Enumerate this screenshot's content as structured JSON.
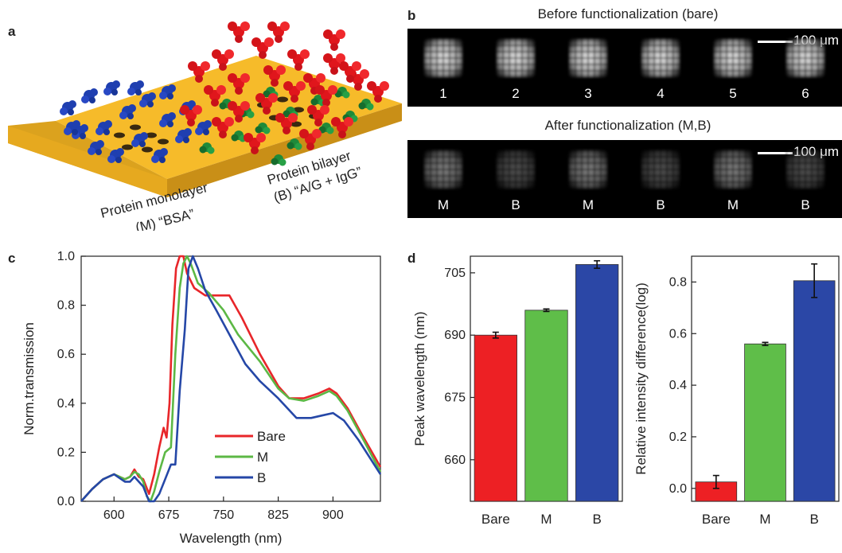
{
  "panel_labels": {
    "a": "a",
    "b": "b",
    "c": "c",
    "d": "d"
  },
  "panel_a": {
    "monolayer_line1": "Protein monolayer",
    "monolayer_line2": "(M) “BSA”",
    "bilayer_line1": "Protein bilayer",
    "bilayer_line2": "(B) “A/G + IgG”",
    "colors": {
      "substrate": "#f4b521",
      "bsa": "#1f3fb0",
      "ag": "#1f8a3a",
      "igg": "#e0161c"
    }
  },
  "panel_b": {
    "top_title": "Before functionalization (bare)",
    "bottom_title": "After functionalization (M,B)",
    "scale_label": "100 μm",
    "top_labels": [
      "1",
      "2",
      "3",
      "4",
      "5",
      "6"
    ],
    "bottom_labels": [
      "M",
      "B",
      "M",
      "B",
      "M",
      "B"
    ],
    "bottom_brightness": [
      0.55,
      0.35,
      0.55,
      0.35,
      0.55,
      0.35
    ]
  },
  "chart_data": [
    {
      "type": "line",
      "xlabel": "Wavelength (nm)",
      "ylabel": "Norm.transmission",
      "xlim": [
        555,
        965
      ],
      "ylim": [
        0,
        1.0
      ],
      "xticks": [
        600,
        675,
        750,
        825,
        900
      ],
      "yticks": [
        0.0,
        0.2,
        0.4,
        0.6,
        0.8,
        1.0
      ],
      "legend": "center-right",
      "series": [
        {
          "name": "Bare",
          "color": "#e8262a",
          "x": [
            555,
            570,
            585,
            600,
            615,
            622,
            628,
            634,
            640,
            648,
            655,
            662,
            668,
            672,
            676,
            680,
            685,
            690,
            695,
            700,
            710,
            725,
            740,
            758,
            775,
            800,
            825,
            840,
            860,
            880,
            895,
            905,
            920,
            940,
            965
          ],
          "y": [
            0.0,
            0.05,
            0.09,
            0.11,
            0.09,
            0.1,
            0.13,
            0.1,
            0.09,
            0.03,
            0.11,
            0.22,
            0.3,
            0.26,
            0.4,
            0.72,
            0.95,
            1.0,
            1.0,
            0.93,
            0.87,
            0.84,
            0.84,
            0.84,
            0.75,
            0.6,
            0.47,
            0.42,
            0.42,
            0.44,
            0.46,
            0.44,
            0.38,
            0.27,
            0.14
          ]
        },
        {
          "name": "M",
          "color": "#5cb845",
          "x": [
            555,
            570,
            585,
            600,
            615,
            622,
            628,
            634,
            640,
            645,
            650,
            655,
            662,
            670,
            678,
            684,
            690,
            695,
            700,
            705,
            715,
            730,
            750,
            770,
            800,
            825,
            840,
            860,
            880,
            895,
            905,
            920,
            940,
            965
          ],
          "y": [
            0.0,
            0.05,
            0.09,
            0.11,
            0.09,
            0.1,
            0.12,
            0.11,
            0.08,
            0.02,
            0.0,
            0.04,
            0.12,
            0.2,
            0.22,
            0.6,
            0.87,
            0.97,
            1.0,
            0.97,
            0.89,
            0.85,
            0.78,
            0.68,
            0.57,
            0.46,
            0.42,
            0.41,
            0.43,
            0.45,
            0.43,
            0.37,
            0.26,
            0.12
          ]
        },
        {
          "name": "B",
          "color": "#2547a7",
          "x": [
            555,
            570,
            585,
            600,
            615,
            622,
            628,
            634,
            640,
            648,
            655,
            662,
            670,
            678,
            684,
            690,
            697,
            702,
            708,
            715,
            725,
            740,
            760,
            780,
            800,
            825,
            850,
            870,
            885,
            900,
            915,
            935,
            965
          ],
          "y": [
            0.0,
            0.05,
            0.09,
            0.11,
            0.08,
            0.08,
            0.1,
            0.08,
            0.06,
            0.0,
            0.0,
            0.03,
            0.09,
            0.15,
            0.15,
            0.45,
            0.7,
            0.95,
            1.0,
            0.95,
            0.86,
            0.78,
            0.67,
            0.56,
            0.49,
            0.42,
            0.34,
            0.34,
            0.35,
            0.36,
            0.33,
            0.25,
            0.11
          ]
        }
      ]
    },
    {
      "type": "bar",
      "categories": [
        "Bare",
        "M",
        "B"
      ],
      "values": [
        690.0,
        696.0,
        707.0
      ],
      "errors": [
        0.7,
        0.3,
        0.9
      ],
      "colors": [
        "#ed2024",
        "#5fbe49",
        "#2b47a6"
      ],
      "ylabel": "Peak wavelength (nm)",
      "ylim": [
        650,
        709
      ],
      "yticks": [
        660,
        675,
        690,
        705
      ]
    },
    {
      "type": "bar",
      "categories": [
        "Bare",
        "M",
        "B"
      ],
      "values": [
        0.025,
        0.56,
        0.805
      ],
      "errors": [
        0.025,
        0.006,
        0.065
      ],
      "colors": [
        "#ed2024",
        "#5fbe49",
        "#2b47a6"
      ],
      "ylabel": "Relative intensity difference(log)",
      "ylim": [
        -0.05,
        0.9
      ],
      "yticks": [
        0.0,
        0.2,
        0.4,
        0.6,
        0.8
      ]
    }
  ]
}
